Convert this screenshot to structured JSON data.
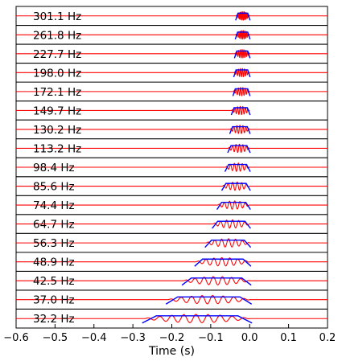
{
  "chart_data": {
    "type": "line",
    "xlabel": "Time (s)",
    "xlim": [
      -0.6,
      0.2
    ],
    "x_ticks": [
      -0.6,
      -0.5,
      -0.4,
      -0.3,
      -0.2,
      -0.1,
      0.0,
      0.1,
      0.2
    ],
    "x_tick_labels": [
      "−0.6",
      "−0.5",
      "−0.4",
      "−0.3",
      "−0.2",
      "−0.1",
      "0.0",
      "0.1",
      "0.2"
    ],
    "grid": false,
    "series_colors": {
      "envelope": "#0000ff",
      "signal": "#ff0000",
      "separator": "#000000"
    },
    "bands": [
      {
        "label": "301.1 Hz",
        "freq": 301.1,
        "t_start": -0.035,
        "t_end": 0.0,
        "ramp": 0.005
      },
      {
        "label": "261.8 Hz",
        "freq": 261.8,
        "t_start": -0.036,
        "t_end": 0.0,
        "ramp": 0.005
      },
      {
        "label": "227.7 Hz",
        "freq": 227.7,
        "t_start": -0.038,
        "t_end": 0.0,
        "ramp": 0.005
      },
      {
        "label": "198.0 Hz",
        "freq": 198.0,
        "t_start": -0.04,
        "t_end": 0.0,
        "ramp": 0.005
      },
      {
        "label": "172.1 Hz",
        "freq": 172.1,
        "t_start": -0.042,
        "t_end": 0.0,
        "ramp": 0.005
      },
      {
        "label": "149.7 Hz",
        "freq": 149.7,
        "t_start": -0.046,
        "t_end": 0.0,
        "ramp": 0.006
      },
      {
        "label": "130.2 Hz",
        "freq": 130.2,
        "t_start": -0.05,
        "t_end": 0.0,
        "ramp": 0.006
      },
      {
        "label": "113.2 Hz",
        "freq": 113.2,
        "t_start": -0.055,
        "t_end": 0.0,
        "ramp": 0.007
      },
      {
        "label": "98.4 Hz",
        "freq": 98.4,
        "t_start": -0.062,
        "t_end": 0.0,
        "ramp": 0.008
      },
      {
        "label": "85.6 Hz",
        "freq": 85.6,
        "t_start": -0.07,
        "t_end": 0.0,
        "ramp": 0.009
      },
      {
        "label": "74.4 Hz",
        "freq": 74.4,
        "t_start": -0.082,
        "t_end": 0.0,
        "ramp": 0.01
      },
      {
        "label": "64.7 Hz",
        "freq": 64.7,
        "t_start": -0.094,
        "t_end": 0.0,
        "ramp": 0.012
      },
      {
        "label": "56.3 Hz",
        "freq": 56.3,
        "t_start": -0.112,
        "t_end": 0.0,
        "ramp": 0.014
      },
      {
        "label": "48.9 Hz",
        "freq": 48.9,
        "t_start": -0.138,
        "t_end": 0.0,
        "ramp": 0.017
      },
      {
        "label": "42.5 Hz",
        "freq": 42.5,
        "t_start": -0.17,
        "t_end": 0.0,
        "ramp": 0.02
      },
      {
        "label": "37.0 Hz",
        "freq": 37.0,
        "t_start": -0.21,
        "t_end": 0.0,
        "ramp": 0.025
      },
      {
        "label": "32.2 Hz",
        "freq": 32.2,
        "t_start": -0.27,
        "t_end": 0.0,
        "ramp": 0.03
      }
    ]
  }
}
